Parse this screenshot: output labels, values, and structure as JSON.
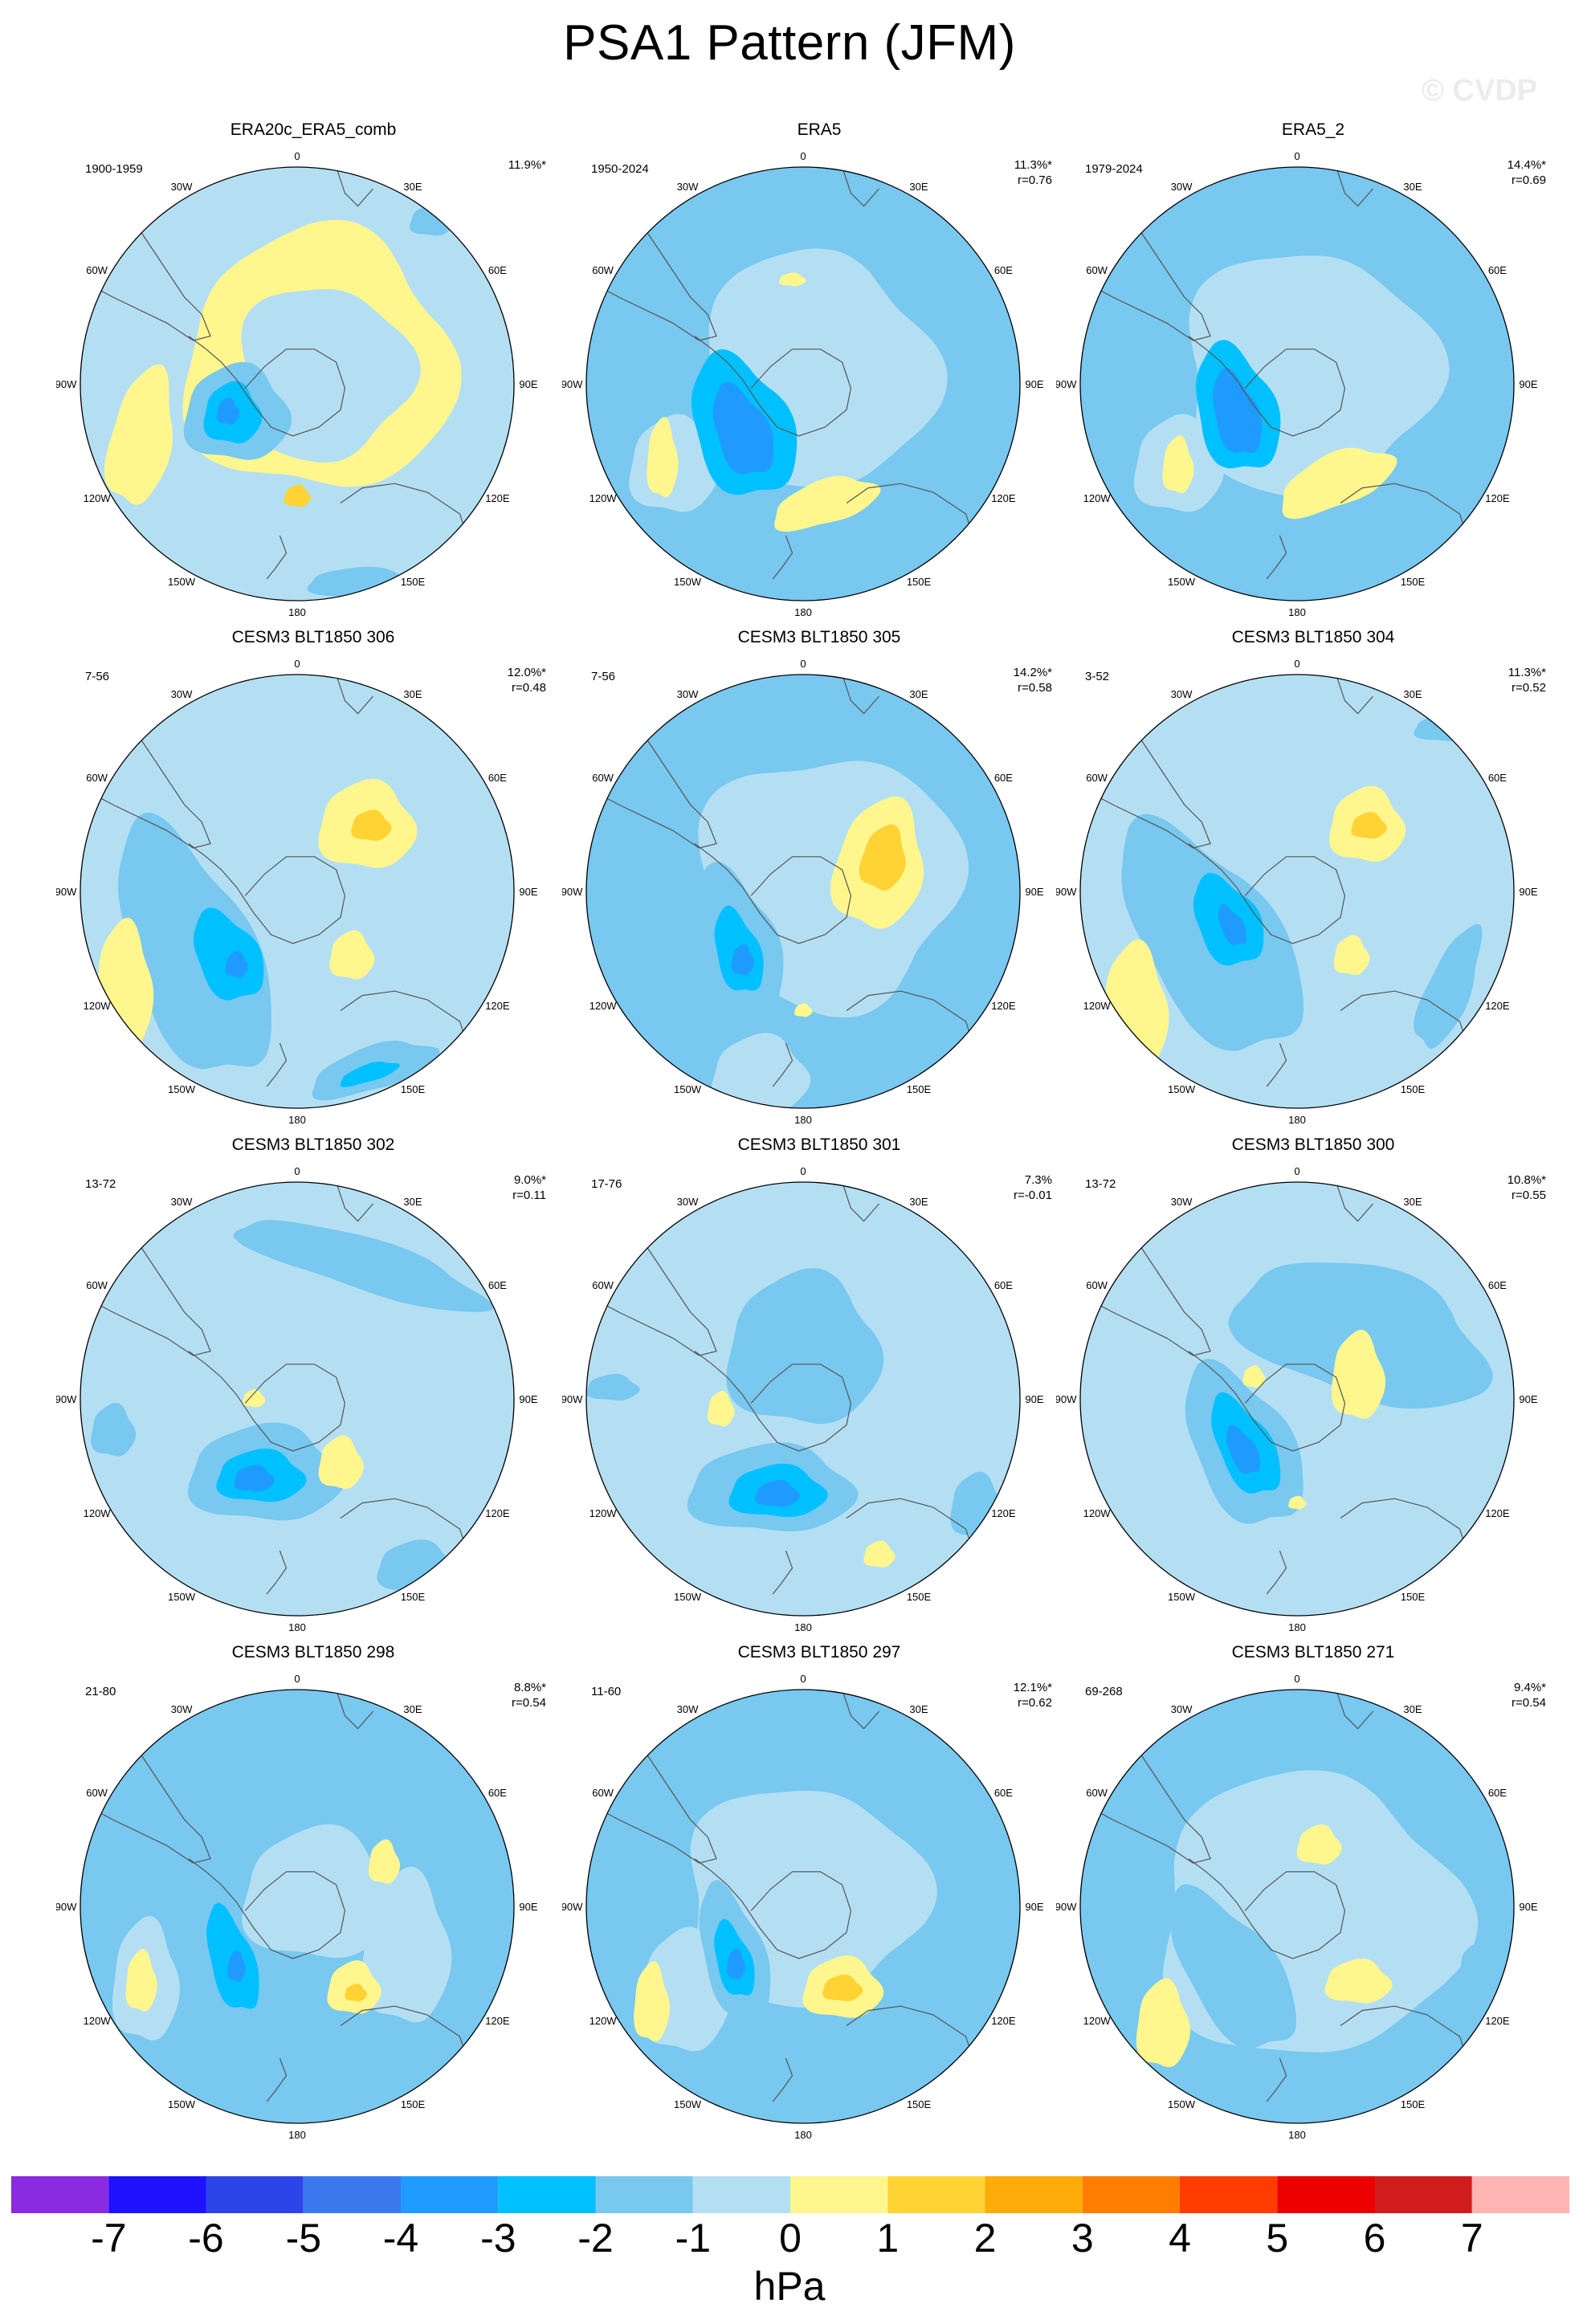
{
  "title": "PSA1 Pattern (JFM)",
  "watermark": "© CVDP",
  "lon_labels": [
    "0",
    "30E",
    "60E",
    "90E",
    "120E",
    "150E",
    "180",
    "150W",
    "120W",
    "90W",
    "60W",
    "30W"
  ],
  "panels": [
    {
      "title": "ERA20c_ERA5_comb",
      "period": "1900-1959",
      "pct": "11.9%*",
      "r": ""
    },
    {
      "title": "ERA5",
      "period": "1950-2024",
      "pct": "11.3%*",
      "r": "r=0.76"
    },
    {
      "title": "ERA5_2",
      "period": "1979-2024",
      "pct": "14.4%*",
      "r": "r=0.69"
    },
    {
      "title": "CESM3 BLT1850 306",
      "period": "7-56",
      "pct": "12.0%*",
      "r": "r=0.48"
    },
    {
      "title": "CESM3 BLT1850 305",
      "period": "7-56",
      "pct": "14.2%*",
      "r": "r=0.58"
    },
    {
      "title": "CESM3 BLT1850 304",
      "period": "3-52",
      "pct": "11.3%*",
      "r": "r=0.52"
    },
    {
      "title": "CESM3 BLT1850 302",
      "period": "13-72",
      "pct": "9.0%*",
      "r": "r=0.11"
    },
    {
      "title": "CESM3 BLT1850 301",
      "period": "17-76",
      "pct": "7.3%",
      "r": "r=-0.01"
    },
    {
      "title": "CESM3 BLT1850 300",
      "period": "13-72",
      "pct": "10.8%*",
      "r": "r=0.55"
    },
    {
      "title": "CESM3 BLT1850 298",
      "period": "21-80",
      "pct": "8.8%*",
      "r": "r=0.54"
    },
    {
      "title": "CESM3 BLT1850 297",
      "period": "11-60",
      "pct": "12.1%*",
      "r": "r=0.62"
    },
    {
      "title": "CESM3 BLT1850 271",
      "period": "69-268",
      "pct": "9.4%*",
      "r": "r=0.54"
    }
  ],
  "colorbar": {
    "unit": "hPa",
    "ticks": [
      "-7",
      "-6",
      "-5",
      "-4",
      "-3",
      "-2",
      "-1",
      "0",
      "1",
      "2",
      "3",
      "4",
      "5",
      "6",
      "7"
    ],
    "colors": [
      "#8a2be2",
      "#1e12ff",
      "#2c45e8",
      "#3a78ee",
      "#1f9bff",
      "#00c0ff",
      "#78c8f0",
      "#b4dff3",
      "#fff78e",
      "#ffd334",
      "#ffab0a",
      "#ff7d00",
      "#ff3c00",
      "#ec0000",
      "#d01c1c",
      "#ffb4b4"
    ]
  }
}
